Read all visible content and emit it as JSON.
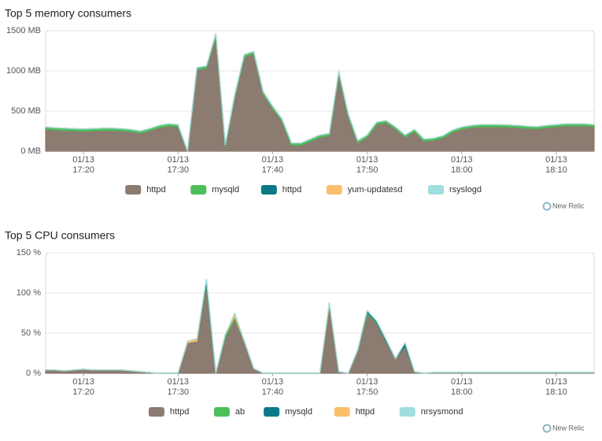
{
  "chart_data": [
    {
      "type": "area",
      "stacked": true,
      "title": "Top 5 memory consumers",
      "brand": "New Relic",
      "x": [
        "01/13 17:16",
        "01/13 17:17",
        "01/13 17:18",
        "01/13 17:19",
        "01/13 17:20",
        "01/13 17:21",
        "01/13 17:22",
        "01/13 17:23",
        "01/13 17:24",
        "01/13 17:25",
        "01/13 17:26",
        "01/13 17:27",
        "01/13 17:28",
        "01/13 17:29",
        "01/13 17:30",
        "01/13 17:31",
        "01/13 17:32",
        "01/13 17:33",
        "01/13 17:34",
        "01/13 17:35",
        "01/13 17:36",
        "01/13 17:37",
        "01/13 17:38",
        "01/13 17:39",
        "01/13 17:40",
        "01/13 17:41",
        "01/13 17:42",
        "01/13 17:43",
        "01/13 17:44",
        "01/13 17:45",
        "01/13 17:46",
        "01/13 17:47",
        "01/13 17:48",
        "01/13 17:49",
        "01/13 17:50",
        "01/13 17:51",
        "01/13 17:52",
        "01/13 17:53",
        "01/13 17:54",
        "01/13 17:55",
        "01/13 17:56",
        "01/13 17:57",
        "01/13 17:58",
        "01/13 17:59",
        "01/13 18:00",
        "01/13 18:01",
        "01/13 18:02",
        "01/13 18:03",
        "01/13 18:04",
        "01/13 18:05",
        "01/13 18:06",
        "01/13 18:07",
        "01/13 18:08",
        "01/13 18:09",
        "01/13 18:10",
        "01/13 18:11",
        "01/13 18:12",
        "01/13 18:13",
        "01/13 18:14"
      ],
      "xlim": [
        "01/13 17:16",
        "01/13 18:14"
      ],
      "xticks": [
        {
          "value": "01/13 17:20",
          "label": "01/13\n17:20"
        },
        {
          "value": "01/13 17:30",
          "label": "01/13\n17:30"
        },
        {
          "value": "01/13 17:40",
          "label": "01/13\n17:40"
        },
        {
          "value": "01/13 17:50",
          "label": "01/13\n17:50"
        },
        {
          "value": "01/13 18:00",
          "label": "01/13\n18:00"
        },
        {
          "value": "01/13 18:10",
          "label": "01/13\n18:10"
        }
      ],
      "ylim": [
        0,
        1500
      ],
      "yticks": [
        {
          "value": 0,
          "label": "0 MB"
        },
        {
          "value": 500,
          "label": "500 MB"
        },
        {
          "value": 1000,
          "label": "1000 MB"
        },
        {
          "value": 1500,
          "label": "1500 MB"
        }
      ],
      "grid": true,
      "series": [
        {
          "name": "httpd",
          "color": "#8b7b70",
          "values": [
            275,
            265,
            260,
            255,
            250,
            255,
            260,
            260,
            255,
            245,
            225,
            255,
            295,
            315,
            305,
            0,
            1015,
            1035,
            1435,
            55,
            675,
            1175,
            1215,
            715,
            535,
            375,
            75,
            75,
            125,
            175,
            195,
            965,
            435,
            105,
            175,
            335,
            355,
            275,
            175,
            245,
            125,
            135,
            165,
            235,
            275,
            295,
            305,
            305,
            305,
            300,
            295,
            285,
            280,
            295,
            305,
            315,
            315,
            315,
            305
          ]
        },
        {
          "name": "mysqld",
          "color": "#4cbf5a",
          "values": [
            25,
            25,
            25,
            25,
            25,
            25,
            25,
            25,
            25,
            25,
            25,
            25,
            25,
            25,
            25,
            0,
            25,
            25,
            25,
            25,
            25,
            25,
            25,
            25,
            25,
            25,
            25,
            25,
            25,
            25,
            25,
            25,
            25,
            25,
            25,
            25,
            25,
            25,
            25,
            25,
            25,
            25,
            25,
            25,
            25,
            25,
            25,
            25,
            25,
            25,
            25,
            25,
            25,
            25,
            25,
            25,
            25,
            25,
            25
          ]
        },
        {
          "name": "httpd",
          "color": "#0b7a86",
          "values": [
            0,
            0,
            0,
            0,
            0,
            0,
            0,
            0,
            0,
            0,
            0,
            0,
            0,
            0,
            0,
            0,
            0,
            0,
            0,
            0,
            0,
            0,
            0,
            0,
            0,
            0,
            0,
            0,
            0,
            0,
            0,
            0,
            0,
            0,
            0,
            0,
            0,
            0,
            0,
            0,
            0,
            0,
            0,
            0,
            0,
            0,
            0,
            0,
            0,
            0,
            0,
            0,
            0,
            0,
            0,
            0,
            0,
            0,
            0
          ]
        },
        {
          "name": "yum-updatesd",
          "color": "#fbbf6c",
          "values": [
            0,
            0,
            0,
            0,
            0,
            0,
            0,
            0,
            0,
            0,
            0,
            0,
            0,
            0,
            0,
            0,
            0,
            0,
            0,
            0,
            0,
            0,
            0,
            0,
            0,
            0,
            0,
            0,
            0,
            0,
            0,
            0,
            0,
            0,
            0,
            0,
            0,
            0,
            0,
            0,
            0,
            0,
            0,
            0,
            0,
            0,
            0,
            0,
            0,
            0,
            0,
            0,
            0,
            0,
            0,
            0,
            0,
            0,
            0
          ]
        },
        {
          "name": "rsyslogd",
          "color": "#9fdde0",
          "values": [
            0,
            0,
            0,
            0,
            0,
            0,
            0,
            0,
            0,
            0,
            0,
            0,
            0,
            0,
            0,
            0,
            0,
            0,
            0,
            0,
            0,
            0,
            0,
            0,
            0,
            0,
            0,
            0,
            0,
            0,
            0,
            0,
            0,
            0,
            0,
            0,
            0,
            0,
            0,
            0,
            0,
            0,
            0,
            0,
            0,
            0,
            0,
            0,
            0,
            0,
            0,
            0,
            0,
            0,
            0,
            0,
            0,
            0,
            0
          ]
        }
      ]
    },
    {
      "type": "area",
      "stacked": true,
      "title": "Top 5 CPU consumers",
      "brand": "New Relic",
      "x": [
        "01/13 17:16",
        "01/13 17:17",
        "01/13 17:18",
        "01/13 17:19",
        "01/13 17:20",
        "01/13 17:21",
        "01/13 17:22",
        "01/13 17:23",
        "01/13 17:24",
        "01/13 17:25",
        "01/13 17:26",
        "01/13 17:27",
        "01/13 17:28",
        "01/13 17:29",
        "01/13 17:30",
        "01/13 17:31",
        "01/13 17:32",
        "01/13 17:33",
        "01/13 17:34",
        "01/13 17:35",
        "01/13 17:36",
        "01/13 17:37",
        "01/13 17:38",
        "01/13 17:39",
        "01/13 17:40",
        "01/13 17:41",
        "01/13 17:42",
        "01/13 17:43",
        "01/13 17:44",
        "01/13 17:45",
        "01/13 17:46",
        "01/13 17:47",
        "01/13 17:48",
        "01/13 17:49",
        "01/13 17:50",
        "01/13 17:51",
        "01/13 17:52",
        "01/13 17:53",
        "01/13 17:54",
        "01/13 17:55",
        "01/13 17:56",
        "01/13 17:57",
        "01/13 17:58",
        "01/13 17:59",
        "01/13 18:00",
        "01/13 18:01",
        "01/13 18:02",
        "01/13 18:03",
        "01/13 18:04",
        "01/13 18:05",
        "01/13 18:06",
        "01/13 18:07",
        "01/13 18:08",
        "01/13 18:09",
        "01/13 18:10",
        "01/13 18:11",
        "01/13 18:12",
        "01/13 18:13",
        "01/13 18:14"
      ],
      "xlim": [
        "01/13 17:16",
        "01/13 18:14"
      ],
      "xticks": [
        {
          "value": "01/13 17:20",
          "label": "01/13\n17:20"
        },
        {
          "value": "01/13 17:30",
          "label": "01/13\n17:30"
        },
        {
          "value": "01/13 17:40",
          "label": "01/13\n17:40"
        },
        {
          "value": "01/13 17:50",
          "label": "01/13\n17:50"
        },
        {
          "value": "01/13 18:00",
          "label": "01/13\n18:00"
        },
        {
          "value": "01/13 18:10",
          "label": "01/13\n18:10"
        }
      ],
      "ylim": [
        0,
        150
      ],
      "yticks": [
        {
          "value": 0,
          "label": "0 %"
        },
        {
          "value": 50,
          "label": "50 %"
        },
        {
          "value": 100,
          "label": "100 %"
        },
        {
          "value": 150,
          "label": "150 %"
        }
      ],
      "grid": true,
      "series": [
        {
          "name": "httpd",
          "color": "#8b7b70",
          "values": [
            4,
            4,
            3,
            4,
            5,
            4,
            4,
            4,
            4,
            3,
            2,
            1,
            0,
            0,
            0,
            38,
            40,
            110,
            0,
            45,
            68,
            40,
            6,
            0,
            0,
            0,
            0,
            0,
            0,
            0,
            86,
            2,
            0,
            28,
            74,
            62,
            40,
            18,
            34,
            2,
            0,
            1,
            1,
            1,
            1,
            1,
            1,
            1,
            1,
            1,
            1,
            1,
            1,
            1,
            1,
            1,
            1,
            1,
            1
          ]
        },
        {
          "name": "ab",
          "color": "#4cbf5a",
          "values": [
            0,
            0,
            0,
            0,
            0,
            0,
            0,
            0,
            0,
            0,
            0,
            0,
            0,
            0,
            0,
            0,
            0,
            2,
            0,
            3,
            3,
            0,
            0,
            0,
            0,
            0,
            0,
            0,
            0,
            0,
            0,
            0,
            0,
            1,
            2,
            1,
            0,
            0,
            0,
            0,
            0,
            0,
            0,
            0,
            0,
            0,
            0,
            0,
            0,
            0,
            0,
            0,
            0,
            0,
            0,
            0,
            0,
            0,
            0
          ]
        },
        {
          "name": "mysqld",
          "color": "#0b7a86",
          "values": [
            0,
            0,
            0,
            0,
            0,
            0,
            0,
            0,
            0,
            0,
            0,
            0,
            0,
            0,
            0,
            0,
            0,
            5,
            0,
            0,
            0,
            0,
            0,
            0,
            0,
            0,
            0,
            0,
            0,
            0,
            0,
            0,
            0,
            0,
            2,
            2,
            2,
            0,
            4,
            0,
            0,
            0,
            0,
            0,
            0,
            0,
            0,
            0,
            0,
            0,
            0,
            0,
            0,
            0,
            0,
            0,
            0,
            0,
            0
          ]
        },
        {
          "name": "httpd",
          "color": "#fbbf6c",
          "values": [
            0,
            0,
            0,
            0,
            0,
            0,
            0,
            0,
            0,
            0,
            0,
            0,
            0,
            0,
            0,
            2,
            3,
            0,
            0,
            0,
            4,
            0,
            0,
            0,
            0,
            0,
            0,
            0,
            0,
            0,
            2,
            0,
            0,
            0,
            0,
            0,
            0,
            0,
            0,
            0,
            0,
            0,
            0,
            0,
            0,
            0,
            0,
            0,
            0,
            0,
            0,
            0,
            0,
            0,
            0,
            0,
            0,
            0,
            0
          ]
        },
        {
          "name": "nrsysmond",
          "color": "#9fdde0",
          "values": [
            0,
            0,
            0,
            0,
            0,
            0,
            0,
            0,
            0,
            0,
            0,
            0,
            0,
            0,
            0,
            0,
            0,
            0,
            0,
            0,
            0,
            0,
            0,
            0,
            0,
            0,
            0,
            0,
            0,
            0,
            0,
            0,
            0,
            0,
            0,
            0,
            0,
            0,
            0,
            0,
            0,
            0,
            0,
            0,
            0,
            0,
            0,
            0,
            0,
            0,
            0,
            0,
            0,
            0,
            0,
            0,
            0,
            0,
            0
          ]
        }
      ]
    }
  ]
}
